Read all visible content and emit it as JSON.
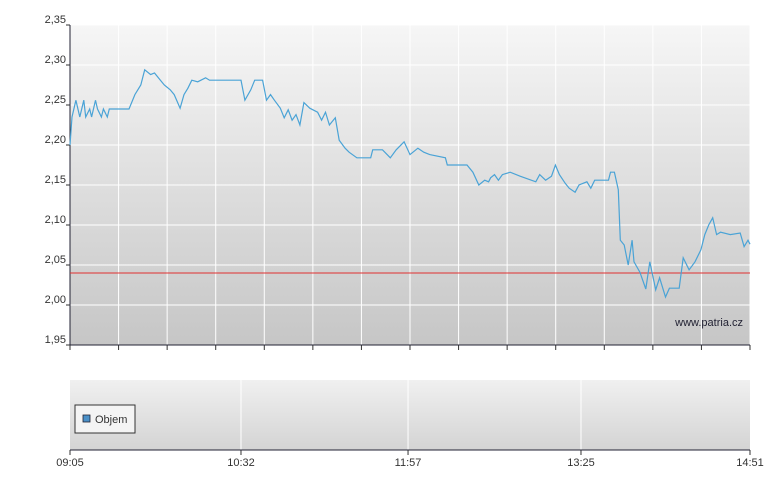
{
  "chart_data": [
    {
      "type": "line",
      "color": "#4aa3d6",
      "xlim": [
        545,
        891
      ],
      "ylim": [
        1.95,
        2.35
      ],
      "yticks": [
        {
          "value": 1.95,
          "label": "1,95"
        },
        {
          "value": 2.0,
          "label": "2,00"
        },
        {
          "value": 2.05,
          "label": "2,05"
        },
        {
          "value": 2.1,
          "label": "2,10"
        },
        {
          "value": 2.15,
          "label": "2,15"
        },
        {
          "value": 2.2,
          "label": "2,20"
        },
        {
          "value": 2.25,
          "label": "2,25"
        },
        {
          "value": 2.3,
          "label": "2,30"
        },
        {
          "value": 2.35,
          "label": "2,35"
        }
      ],
      "grid": true,
      "reference_line": {
        "value": 2.04,
        "color": "#e03030"
      },
      "annotation": "www.patria.cz",
      "x": [
        545,
        546,
        548,
        550,
        552,
        553,
        555,
        556,
        558,
        559,
        561,
        562,
        564,
        565,
        568,
        575,
        578,
        581,
        583,
        586,
        588,
        591,
        593,
        596,
        598,
        601,
        603,
        605,
        607,
        610,
        614,
        616,
        632,
        634,
        637,
        639,
        643,
        645,
        647,
        649,
        652,
        654,
        656,
        658,
        660,
        662,
        664,
        667,
        671,
        673,
        675,
        677,
        680,
        682,
        685,
        687,
        691,
        698,
        699,
        704,
        708,
        711,
        715,
        718,
        722,
        725,
        728,
        736,
        737,
        747,
        750,
        753,
        756,
        758,
        759,
        761,
        763,
        765,
        769,
        774,
        782,
        784,
        787,
        790,
        792,
        794,
        797,
        799,
        802,
        804,
        808,
        810,
        812,
        819,
        820,
        822,
        824,
        825,
        827,
        829,
        831,
        832,
        835,
        838,
        840,
        843,
        845,
        848,
        850,
        855,
        857,
        860,
        863,
        866,
        868,
        870,
        872,
        874,
        876,
        881,
        886,
        888,
        890,
        891
      ],
      "values": [
        2.2,
        2.235,
        2.256,
        2.235,
        2.256,
        2.235,
        2.245,
        2.235,
        2.256,
        2.245,
        2.235,
        2.245,
        2.235,
        2.245,
        2.245,
        2.245,
        2.263,
        2.275,
        2.294,
        2.288,
        2.29,
        2.281,
        2.275,
        2.269,
        2.263,
        2.246,
        2.263,
        2.271,
        2.281,
        2.279,
        2.284,
        2.281,
        2.281,
        2.256,
        2.269,
        2.281,
        2.281,
        2.256,
        2.263,
        2.256,
        2.246,
        2.234,
        2.244,
        2.231,
        2.238,
        2.225,
        2.253,
        2.246,
        2.241,
        2.231,
        2.241,
        2.225,
        2.234,
        2.206,
        2.196,
        2.191,
        2.184,
        2.184,
        2.194,
        2.194,
        2.184,
        2.194,
        2.204,
        2.188,
        2.196,
        2.191,
        2.188,
        2.184,
        2.175,
        2.175,
        2.166,
        2.15,
        2.156,
        2.154,
        2.159,
        2.163,
        2.156,
        2.163,
        2.166,
        2.161,
        2.154,
        2.163,
        2.156,
        2.161,
        2.175,
        2.163,
        2.152,
        2.146,
        2.141,
        2.15,
        2.154,
        2.146,
        2.156,
        2.156,
        2.166,
        2.166,
        2.144,
        2.081,
        2.075,
        2.05,
        2.081,
        2.054,
        2.041,
        2.02,
        2.054,
        2.019,
        2.034,
        2.01,
        2.021,
        2.021,
        2.059,
        2.044,
        2.054,
        2.069,
        2.088,
        2.1,
        2.109,
        2.088,
        2.091,
        2.088,
        2.09,
        2.073,
        2.081,
        2.076
      ]
    },
    {
      "type": "bar",
      "xlim": [
        545,
        891
      ],
      "xticks": [
        {
          "value": 545,
          "label": "09:05"
        },
        {
          "value": 632,
          "label": "10:32"
        },
        {
          "value": 717,
          "label": "11:57"
        },
        {
          "value": 805,
          "label": "13:25"
        },
        {
          "value": 891,
          "label": "14:51"
        }
      ],
      "series": [
        {
          "name": "Objem",
          "color": "#4a90c8",
          "values": []
        }
      ]
    }
  ]
}
